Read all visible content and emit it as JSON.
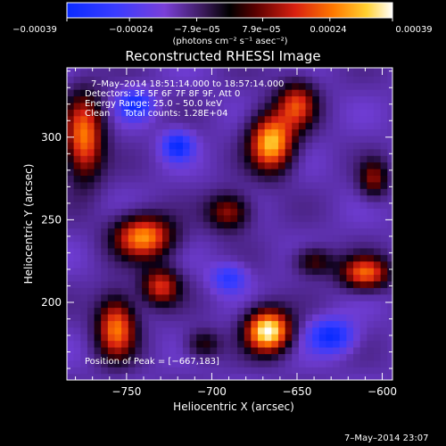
{
  "chart_data": {
    "type": "heatmap",
    "title": "Reconstructed RHESSI Image",
    "xlabel": "Heliocentric X (arcsec)",
    "ylabel": "Heliocentric Y (arcsec)",
    "xlim": [
      -785,
      -594
    ],
    "ylim": [
      153,
      342
    ],
    "x_ticks": [
      -750,
      -700,
      -650,
      -600
    ],
    "x_tick_labels": [
      "−750",
      "−700",
      "−650",
      "−600"
    ],
    "y_ticks": [
      200,
      250,
      300
    ],
    "y_tick_labels": [
      "200",
      "250",
      "300"
    ],
    "colorbar": {
      "range": [
        -0.00039,
        0.00039
      ],
      "tick_labels": [
        "−0.00039",
        "−0.00024",
        "−7.9e−05",
        "7.9e−05",
        "0.00024",
        "0.00039"
      ],
      "unit_label": "(photons cm⁻² s⁻¹ asec⁻²)"
    },
    "info_lines": [
      "7–May–2014 18:51:14.000 to 18:57:14.000",
      "Detectors: 3F 5F 6F 7F 8F 9F, Att 0",
      "Energy Range: 25.0 – 50.0 keV",
      "Clean     Total counts: 1.28E+04"
    ],
    "peak_label": "Position of Peak = [−667,183]",
    "peak": [
      -667,
      183
    ],
    "timestamp": "7–May–2014 23:07",
    "blobs": [
      {
        "x": -667,
        "y": 183,
        "sx": 9,
        "sy": 9,
        "amp": 1.0
      },
      {
        "x": -665,
        "y": 297,
        "sx": 9,
        "sy": 12,
        "amp": 0.85
      },
      {
        "x": -650,
        "y": 320,
        "sx": 8,
        "sy": 10,
        "amp": 0.55
      },
      {
        "x": -740,
        "y": 240,
        "sx": 12,
        "sy": 9,
        "amp": 0.75
      },
      {
        "x": -730,
        "y": 210,
        "sx": 8,
        "sy": 8,
        "amp": 0.55
      },
      {
        "x": -756,
        "y": 185,
        "sx": 8,
        "sy": 13,
        "amp": 0.7
      },
      {
        "x": -775,
        "y": 300,
        "sx": 8,
        "sy": 18,
        "amp": 0.7
      },
      {
        "x": -610,
        "y": 218,
        "sx": 10,
        "sy": 7,
        "amp": 0.65
      },
      {
        "x": -605,
        "y": 275,
        "sx": 6,
        "sy": 8,
        "amp": 0.4
      },
      {
        "x": -690,
        "y": 255,
        "sx": 9,
        "sy": 8,
        "amp": 0.45
      },
      {
        "x": -640,
        "y": 225,
        "sx": 8,
        "sy": 6,
        "amp": 0.35
      },
      {
        "x": -705,
        "y": 175,
        "sx": 7,
        "sy": 6,
        "amp": 0.3
      },
      {
        "x": -720,
        "y": 295,
        "sx": 6,
        "sy": 6,
        "amp": -0.5
      },
      {
        "x": -630,
        "y": 180,
        "sx": 9,
        "sy": 7,
        "amp": -0.5
      },
      {
        "x": -745,
        "y": 320,
        "sx": 7,
        "sy": 6,
        "amp": -0.45
      },
      {
        "x": -690,
        "y": 215,
        "sx": 7,
        "sy": 6,
        "amp": -0.35
      }
    ]
  }
}
